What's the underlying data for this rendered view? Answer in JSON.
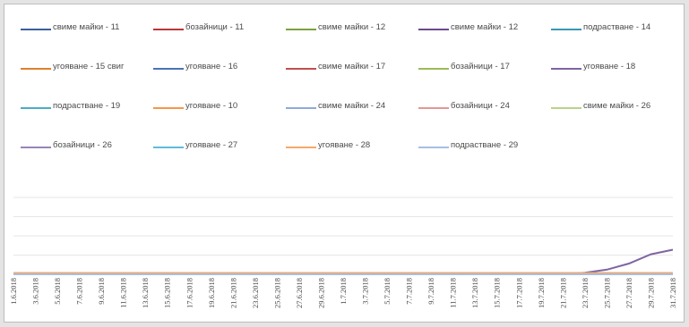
{
  "chart_data": {
    "type": "line",
    "legend_position": "top",
    "grid": true,
    "title": "",
    "xlabel": "",
    "ylabel": "",
    "ylim": [
      0,
      100
    ],
    "categories": [
      "1.6.2018",
      "3.6.2018",
      "5.6.2018",
      "7.6.2018",
      "9.6.2018",
      "11.6.2018",
      "13.6.2018",
      "15.6.2018",
      "17.6.2018",
      "19.6.2018",
      "21.6.2018",
      "23.6.2018",
      "25.6.2018",
      "27.6.2018",
      "29.6.2018",
      "1.7.2018",
      "3.7.2018",
      "5.7.2018",
      "7.7.2018",
      "9.7.2018",
      "11.7.2018",
      "13.7.2018",
      "15.7.2018",
      "17.7.2018",
      "19.7.2018",
      "21.7.2018",
      "23.7.2018",
      "25.7.2018",
      "27.7.2018",
      "29.7.2018",
      "31.7.2018"
    ],
    "series": [
      {
        "name": "свиме майки - 11",
        "color": "#3c5f9e",
        "values": [
          0,
          0,
          0,
          0,
          0,
          0,
          0,
          0,
          0,
          0,
          0,
          0,
          0,
          0,
          0,
          0,
          0,
          0,
          0,
          0,
          0,
          0,
          0,
          0,
          0,
          0,
          0,
          0,
          0,
          0,
          0
        ]
      },
      {
        "name": "бозайници - 11",
        "color": "#b8373a",
        "values": [
          0,
          0,
          0,
          0,
          0,
          0,
          0,
          0,
          0,
          0,
          0,
          0,
          0,
          0,
          0,
          0,
          0,
          0,
          0,
          0,
          0,
          0,
          0,
          0,
          0,
          0,
          0,
          0,
          0,
          0,
          0
        ]
      },
      {
        "name": "свиме майки - 12",
        "color": "#7aa23f",
        "values": [
          0,
          0,
          0,
          0,
          0,
          0,
          0,
          0,
          0,
          0,
          0,
          0,
          0,
          0,
          0,
          0,
          0,
          0,
          0,
          0,
          0,
          0,
          0,
          0,
          0,
          0,
          0,
          0,
          0,
          0,
          0
        ]
      },
      {
        "name": "свиме майки - 12",
        "color": "#6a4a8f",
        "values": [
          0,
          0,
          0,
          0,
          0,
          0,
          0,
          0,
          0,
          0,
          0,
          0,
          0,
          0,
          0,
          0,
          0,
          0,
          0,
          0,
          0,
          0,
          0,
          0,
          0,
          0,
          0,
          0,
          0,
          0,
          0
        ]
      },
      {
        "name": "подрастване - 14",
        "color": "#3a98b3",
        "values": [
          0,
          0,
          0,
          0,
          0,
          0,
          0,
          0,
          0,
          0,
          0,
          0,
          0,
          0,
          0,
          0,
          0,
          0,
          0,
          0,
          0,
          0,
          0,
          0,
          0,
          0,
          0,
          0,
          0,
          0,
          0
        ]
      },
      {
        "name": "угояване - 15 свиг",
        "color": "#e0802e",
        "values": [
          0,
          0,
          0,
          0,
          0,
          0,
          0,
          0,
          0,
          0,
          0,
          0,
          0,
          0,
          0,
          0,
          0,
          0,
          0,
          0,
          0,
          0,
          0,
          0,
          0,
          0,
          0,
          0,
          0,
          0,
          0
        ]
      },
      {
        "name": "угояване - 16",
        "color": "#4a72b8",
        "values": [
          0,
          0,
          0,
          0,
          0,
          0,
          0,
          0,
          0,
          0,
          0,
          0,
          0,
          0,
          0,
          0,
          0,
          0,
          0,
          0,
          0,
          0,
          0,
          0,
          0,
          0,
          0,
          0,
          0,
          0,
          0
        ]
      },
      {
        "name": "свиме майки - 17",
        "color": "#c0504d",
        "values": [
          0,
          0,
          0,
          0,
          0,
          0,
          0,
          0,
          0,
          0,
          0,
          0,
          0,
          0,
          0,
          0,
          0,
          0,
          0,
          0,
          0,
          0,
          0,
          0,
          0,
          0,
          0,
          0,
          0,
          0,
          0
        ]
      },
      {
        "name": "бозайници - 17",
        "color": "#9bbb59",
        "values": [
          0,
          0,
          0,
          0,
          0,
          0,
          0,
          0,
          0,
          0,
          0,
          0,
          0,
          0,
          0,
          0,
          0,
          0,
          0,
          0,
          0,
          0,
          0,
          0,
          0,
          0,
          0,
          0,
          0,
          0,
          0
        ]
      },
      {
        "name": "угояване - 18",
        "color": "#8064a2",
        "values": [
          0,
          0,
          0,
          0,
          0,
          0,
          0,
          0,
          0,
          0,
          0,
          0,
          0,
          0,
          0,
          0,
          0,
          0,
          0,
          0,
          0,
          0,
          0,
          0,
          0,
          0,
          2,
          6,
          14,
          26,
          32
        ]
      },
      {
        "name": "подрастване - 19",
        "color": "#4bacc6",
        "values": [
          0,
          0,
          0,
          0,
          0,
          0,
          0,
          0,
          0,
          0,
          0,
          0,
          0,
          0,
          0,
          0,
          0,
          0,
          0,
          0,
          0,
          0,
          0,
          0,
          0,
          0,
          0,
          0,
          0,
          0,
          0
        ]
      },
      {
        "name": "угояване - 10",
        "color": "#f79646",
        "values": [
          0,
          0,
          0,
          0,
          0,
          0,
          0,
          0,
          0,
          0,
          0,
          0,
          0,
          0,
          0,
          0,
          0,
          0,
          0,
          0,
          0,
          0,
          0,
          0,
          0,
          0,
          0,
          0,
          0,
          0,
          0
        ]
      },
      {
        "name": "свиме майки - 24",
        "color": "#8fa9d8",
        "values": [
          0,
          0,
          0,
          0,
          0,
          0,
          0,
          0,
          0,
          0,
          0,
          0,
          0,
          0,
          0,
          0,
          0,
          0,
          0,
          0,
          0,
          0,
          0,
          0,
          0,
          0,
          0,
          0,
          0,
          0,
          0
        ]
      },
      {
        "name": "бозайници - 24",
        "color": "#e39694",
        "values": [
          0,
          0,
          0,
          0,
          0,
          0,
          0,
          0,
          0,
          0,
          0,
          0,
          0,
          0,
          0,
          0,
          0,
          0,
          0,
          0,
          0,
          0,
          0,
          0,
          0,
          0,
          0,
          0,
          0,
          0,
          0
        ]
      },
      {
        "name": "свиме майки - 26",
        "color": "#b9d38a",
        "values": [
          0,
          0,
          0,
          0,
          0,
          0,
          0,
          0,
          0,
          0,
          0,
          0,
          0,
          0,
          0,
          0,
          0,
          0,
          0,
          0,
          0,
          0,
          0,
          0,
          0,
          0,
          0,
          0,
          0,
          0,
          0
        ]
      },
      {
        "name": "бозайници - 26",
        "color": "#9a83b8",
        "values": [
          0,
          0,
          0,
          0,
          0,
          0,
          0,
          0,
          0,
          0,
          0,
          0,
          0,
          0,
          0,
          0,
          0,
          0,
          0,
          0,
          0,
          0,
          0,
          0,
          0,
          0,
          0,
          0,
          0,
          0,
          0
        ]
      },
      {
        "name": "угояване - 27",
        "color": "#5fbcd8",
        "values": [
          0,
          0,
          0,
          0,
          0,
          0,
          0,
          0,
          0,
          0,
          0,
          0,
          0,
          0,
          0,
          0,
          0,
          0,
          0,
          0,
          0,
          0,
          0,
          0,
          0,
          0,
          0,
          0,
          0,
          0,
          0
        ]
      },
      {
        "name": "угояване - 28",
        "color": "#f6a86a",
        "values": [
          0,
          0,
          0,
          0,
          0,
          0,
          0,
          0,
          0,
          0,
          0,
          0,
          0,
          0,
          0,
          0,
          0,
          0,
          0,
          0,
          0,
          0,
          0,
          0,
          0,
          0,
          0,
          0,
          0,
          0,
          0
        ]
      },
      {
        "name": "подрастване - 29",
        "color": "#a9bde3",
        "values": [
          0,
          0,
          0,
          0,
          0,
          0,
          0,
          0,
          0,
          0,
          0,
          0,
          0,
          0,
          0,
          0,
          0,
          0,
          0,
          0,
          0,
          0,
          0,
          0,
          0,
          0,
          0,
          0,
          0,
          0,
          0
        ]
      }
    ]
  }
}
